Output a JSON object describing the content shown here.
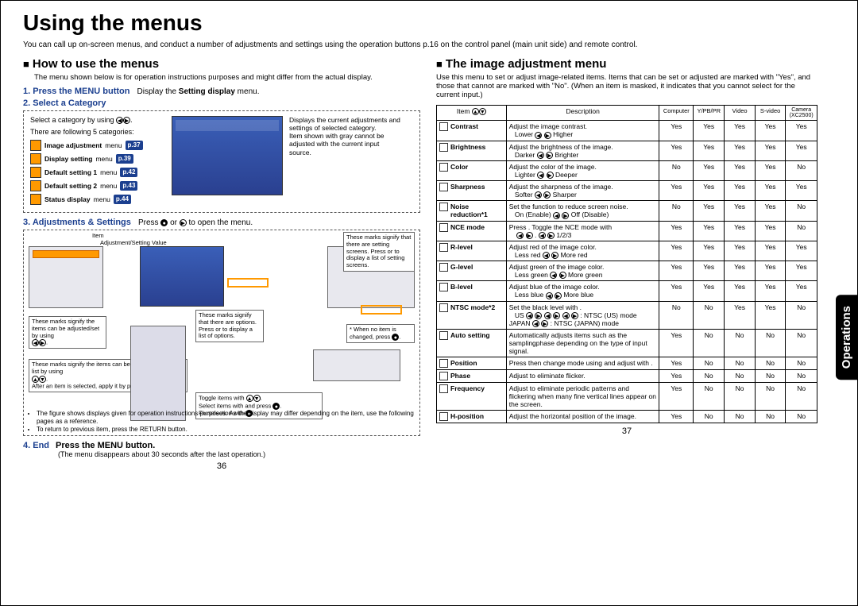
{
  "page_title": "Using the menus",
  "intro": "You can call up on-screen menus, and conduct a number of adjustments and settings using the operation buttons p.16 on the control panel (main unit side) and remote control.",
  "left": {
    "h2": "How to use the menus",
    "sub": "The menu shown below is for operation instructions purposes and might differ from the actual display.",
    "step1": "1. Press the MENU button",
    "step1txt_a": "Display the ",
    "step1txt_b": "Setting display",
    "step1txt_c": " menu.",
    "step2": "2. Select a Category",
    "cat_intro": "Select a category by using ",
    "cat_intro2": "There are following 5 categories:",
    "categories": [
      {
        "label": "Image adjustment menu",
        "page": "p.37"
      },
      {
        "label": "Display setting menu",
        "page": "p.39"
      },
      {
        "label": "Default setting 1 menu",
        "page": "p.42"
      },
      {
        "label": "Default setting 2 menu",
        "page": "p.43"
      },
      {
        "label": "Status display menu",
        "page": "p.44"
      }
    ],
    "cat_info": "Displays the current adjustments and settings of selected category.\nItem shown with gray cannot be adjusted with the current input source.",
    "step3": "3. Adjustments & Settings",
    "step3txt": "Press    or    to open the menu.",
    "adj_label_item": "Item",
    "adj_label_val": "Adjustment/Setting Value",
    "co1": "These marks signify the items can be adjusted/set by using",
    "co2": "These marks signify the items can be selected from the list by using",
    "co2b": "After an item is selected, apply it by pressing",
    "co3": "These marks signify that there are options.\nPress    or    to display a list of options.",
    "co4": "These marks signify that there are setting screens. Press    or    to display a list of setting screens.",
    "co5": "* When no item is changed, press",
    "co_toggle": "Toggle items with",
    "co_select": "Select items with    and press",
    "co_fix": "Fix selection with",
    "note1": "The figure shows displays given for operation instructions purposes. As the display may differ depending on the item, use the following pages as a reference.",
    "note2": "To return to previous item, press the RETURN button.",
    "step4a": "4. End",
    "step4b": "Press the MENU button.",
    "step4note": "(The menu disappears about 30 seconds after the last operation.)",
    "pagenum": "36"
  },
  "right": {
    "h2": "The image adjustment menu",
    "sub": "Use this menu to set or adjust image-related items. Items that can be set or adjusted are marked with \"Yes\", and those that cannot are marked with \"No\". (When an item is masked, it indicates that you cannot select for the current input.)",
    "headers": [
      "Item",
      "Description",
      "Computer",
      "Y/PB/PR",
      "Video",
      "S-video",
      "Camera (XC2500)"
    ],
    "rows": [
      {
        "item": "Contrast",
        "desc": "Adjust the image contrast.",
        "hint": "Lower    Higher",
        "v": [
          "Yes",
          "Yes",
          "Yes",
          "Yes",
          "Yes"
        ]
      },
      {
        "item": "Brightness",
        "desc": "Adjust the brightness of the image.",
        "hint": "Darker    Brighter",
        "v": [
          "Yes",
          "Yes",
          "Yes",
          "Yes",
          "Yes"
        ]
      },
      {
        "item": "Color",
        "desc": "Adjust the color of the image.",
        "hint": "Lighter    Deeper",
        "v": [
          "No",
          "Yes",
          "Yes",
          "Yes",
          "No"
        ]
      },
      {
        "item": "Sharpness",
        "desc": "Adjust the sharpness of the image.",
        "hint": "Softer    Sharper",
        "v": [
          "Yes",
          "Yes",
          "Yes",
          "Yes",
          "Yes"
        ]
      },
      {
        "item": "Noise reduction*1",
        "desc": "Set the function to reduce screen noise.",
        "hint": "On (Enable)    Off (Disable)",
        "v": [
          "No",
          "Yes",
          "Yes",
          "Yes",
          "No"
        ]
      },
      {
        "item": "NCE mode",
        "desc": "Press   . Toggle the NCE mode with",
        "hint": "   .   1/2/3",
        "v": [
          "Yes",
          "Yes",
          "Yes",
          "Yes",
          "No"
        ]
      },
      {
        "item": "R-level",
        "desc": "Adjust red of the image color.",
        "hint": "Less red    More red",
        "v": [
          "Yes",
          "Yes",
          "Yes",
          "Yes",
          "Yes"
        ]
      },
      {
        "item": "G-level",
        "desc": "Adjust green of the image color.",
        "hint": "Less green    More green",
        "v": [
          "Yes",
          "Yes",
          "Yes",
          "Yes",
          "Yes"
        ]
      },
      {
        "item": "B-level",
        "desc": "Adjust blue of the image color.",
        "hint": "Less blue    More blue",
        "v": [
          "Yes",
          "Yes",
          "Yes",
          "Yes",
          "Yes"
        ]
      },
      {
        "item": "NTSC mode*2",
        "desc": "Set the black level with   .",
        "hint": "US          : NTSC (US) mode\nJAPAN   : NTSC (JAPAN) mode",
        "v": [
          "No",
          "No",
          "Yes",
          "Yes",
          "No"
        ]
      },
      {
        "item": "Auto setting",
        "desc": "Automatically adjusts items such as the samplingphase depending on the type of input signal.",
        "hint": "",
        "v": [
          "Yes",
          "No",
          "No",
          "No",
          "No"
        ]
      },
      {
        "item": "Position",
        "desc": "Press    then change mode using    and adjust with   .",
        "hint": "",
        "v": [
          "Yes",
          "No",
          "No",
          "No",
          "No"
        ]
      },
      {
        "item": "Phase",
        "desc": "Adjust to eliminate flicker.",
        "hint": "",
        "v": [
          "Yes",
          "No",
          "No",
          "No",
          "No"
        ]
      },
      {
        "item": "Frequency",
        "desc": "Adjust to eliminate periodic patterns and flickering when many fine vertical lines appear on the screen.",
        "hint": "",
        "v": [
          "Yes",
          "No",
          "No",
          "No",
          "No"
        ]
      },
      {
        "item": "H-position",
        "desc": "Adjust the horizontal position of the image.",
        "hint": "",
        "v": [
          "Yes",
          "No",
          "No",
          "No",
          "No"
        ]
      }
    ],
    "pagenum": "37"
  },
  "side_tab": "Operations"
}
